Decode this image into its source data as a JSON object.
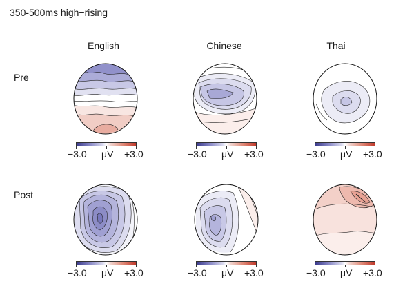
{
  "figure": {
    "title": "350-500ms high−rising",
    "columns": [
      "English",
      "Chinese",
      "Thai"
    ],
    "rows": [
      "Pre",
      "Post"
    ]
  },
  "colorbar": {
    "min_label": "−3.0",
    "unit_label": "μV",
    "max_label": "+3.0",
    "colors": {
      "negative": "#3b3b8c",
      "neutral": "#ffffff",
      "positive": "#c0392b"
    }
  },
  "maps": [
    {
      "row": "Pre",
      "column": "English",
      "pattern": "frontal negativity, posterior positivity"
    },
    {
      "row": "Pre",
      "column": "Chinese",
      "pattern": "central-frontal negativity"
    },
    {
      "row": "Pre",
      "column": "Thai",
      "pattern": "weak central negativity"
    },
    {
      "row": "Post",
      "column": "English",
      "pattern": "broad central-left negativity"
    },
    {
      "row": "Post",
      "column": "Chinese",
      "pattern": "central-left negativity"
    },
    {
      "row": "Post",
      "column": "Thai",
      "pattern": "broad positivity, frontal-right peak"
    }
  ]
}
